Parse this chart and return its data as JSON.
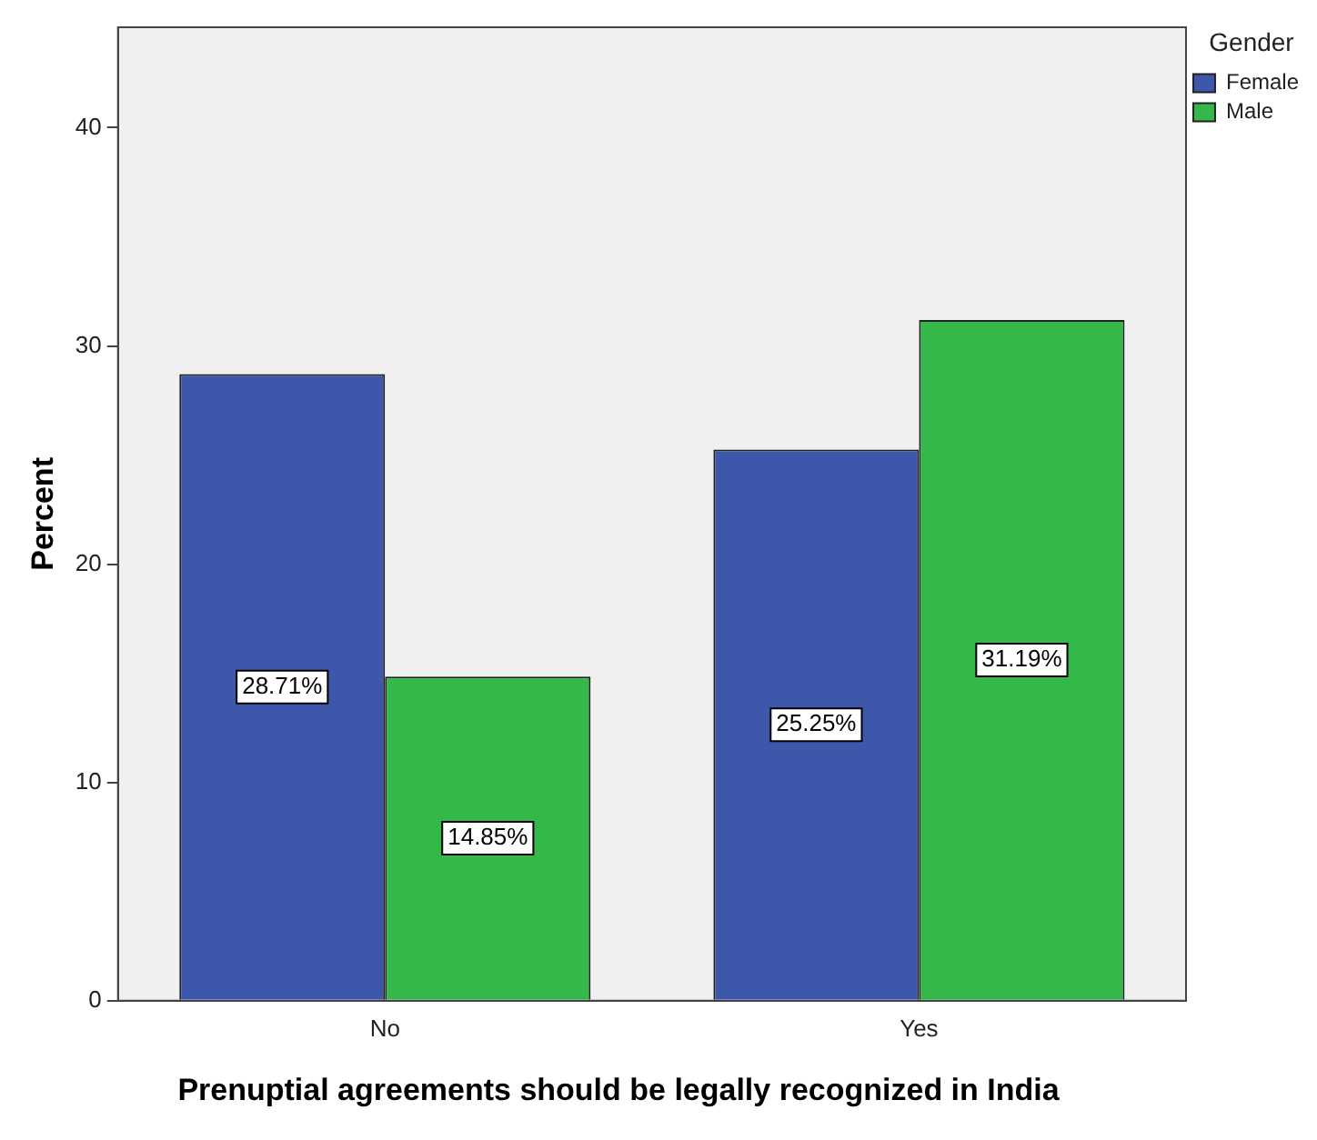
{
  "chart_data": {
    "type": "bar",
    "xlabel": "Prenuptial agreements should be legally recognized in India",
    "ylabel": "Percent",
    "legend_title": "Gender",
    "categories": [
      "No",
      "Yes"
    ],
    "series": [
      {
        "name": "Female",
        "color": "#3d57ab",
        "values": [
          28.71,
          25.25
        ],
        "value_labels": [
          "28.71%",
          "25.25%"
        ]
      },
      {
        "name": "Male",
        "color": "#35b84a",
        "values": [
          14.85,
          31.19
        ],
        "value_labels": [
          "14.85%",
          "31.19%"
        ]
      }
    ],
    "ylim": [
      0,
      44.6
    ],
    "yticks": [
      0,
      10,
      20,
      30,
      40
    ],
    "grid": false,
    "legend": "top right"
  }
}
